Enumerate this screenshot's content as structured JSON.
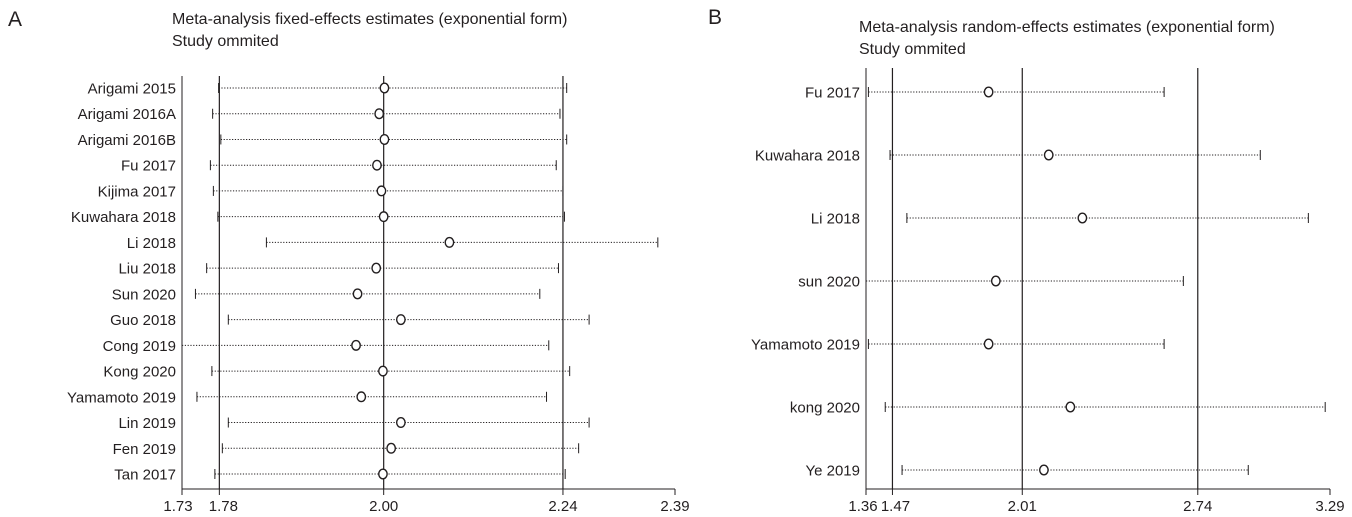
{
  "panels": [
    {
      "letter": "A",
      "title_line1": "Meta-analysis fixed-effects estimates (exponential form)",
      "title_line2": "Study ommited"
    },
    {
      "letter": "B",
      "title_line1": "Meta-analysis random-effects estimates (exponential form)",
      "title_line2": "Study ommited"
    }
  ],
  "chart_data": [
    {
      "type": "forest",
      "title": "Meta-analysis fixed-effects estimates (exponential form)",
      "subtitle": "Study ommited",
      "xlim": [
        1.73,
        2.39
      ],
      "x_ticks": [
        1.73,
        1.78,
        2.0,
        2.24,
        2.39
      ],
      "x_tick_labels": [
        "1.73",
        "1.78",
        "2.00",
        "2.24",
        "2.39"
      ],
      "reference_lines": [
        1.78,
        2.0,
        2.24
      ],
      "studies": [
        {
          "name": "Arigami 2015",
          "estimate": 2.001,
          "lower": 1.779,
          "upper": 2.245
        },
        {
          "name": "Arigami 2016A",
          "estimate": 1.994,
          "lower": 1.771,
          "upper": 2.236
        },
        {
          "name": "Arigami 2016B",
          "estimate": 2.001,
          "lower": 1.782,
          "upper": 2.245
        },
        {
          "name": "Fu 2017",
          "estimate": 1.991,
          "lower": 1.768,
          "upper": 2.231
        },
        {
          "name": "Kijima 2017",
          "estimate": 1.997,
          "lower": 1.772,
          "upper": 2.24
        },
        {
          "name": "Kuwahara 2018",
          "estimate": 2.0,
          "lower": 1.778,
          "upper": 2.242
        },
        {
          "name": "Li 2018",
          "estimate": 2.088,
          "lower": 1.843,
          "upper": 2.367
        },
        {
          "name": "Liu 2018",
          "estimate": 1.99,
          "lower": 1.763,
          "upper": 2.234
        },
        {
          "name": "Sun 2020",
          "estimate": 1.965,
          "lower": 1.748,
          "upper": 2.209
        },
        {
          "name": "Guo 2018",
          "estimate": 2.023,
          "lower": 1.792,
          "upper": 2.275
        },
        {
          "name": "Cong 2019",
          "estimate": 1.963,
          "lower": 1.73,
          "upper": 2.221
        },
        {
          "name": "Kong 2020",
          "estimate": 1.999,
          "lower": 1.77,
          "upper": 2.249
        },
        {
          "name": "Yamamoto 2019",
          "estimate": 1.97,
          "lower": 1.75,
          "upper": 2.218
        },
        {
          "name": "Lin 2019",
          "estimate": 2.023,
          "lower": 1.792,
          "upper": 2.275
        },
        {
          "name": "Fen 2019",
          "estimate": 2.01,
          "lower": 1.784,
          "upper": 2.261
        },
        {
          "name": "Tan 2017",
          "estimate": 1.999,
          "lower": 1.774,
          "upper": 2.243
        }
      ]
    },
    {
      "type": "forest",
      "title": "Meta-analysis random-effects estimates (exponential form)",
      "subtitle": "Study ommited",
      "xlim": [
        1.36,
        3.29
      ],
      "x_ticks": [
        1.36,
        1.47,
        2.01,
        2.74,
        3.29
      ],
      "x_tick_labels": [
        "1.36",
        "1.47",
        "2.01",
        "2.74",
        "3.29"
      ],
      "reference_lines": [
        1.47,
        2.01,
        2.74
      ],
      "studies": [
        {
          "name": "Fu 2017",
          "estimate": 1.87,
          "lower": 1.37,
          "upper": 2.6
        },
        {
          "name": "Kuwahara 2018",
          "estimate": 2.12,
          "lower": 1.46,
          "upper": 3.0
        },
        {
          "name": "Li 2018",
          "estimate": 2.26,
          "lower": 1.53,
          "upper": 3.2
        },
        {
          "name": "sun 2020",
          "estimate": 1.9,
          "lower": 1.36,
          "upper": 2.68
        },
        {
          "name": "Yamamoto 2019",
          "estimate": 1.87,
          "lower": 1.37,
          "upper": 2.6
        },
        {
          "name": "kong 2020",
          "estimate": 2.21,
          "lower": 1.44,
          "upper": 3.27
        },
        {
          "name": "Ye 2019",
          "estimate": 2.1,
          "lower": 1.51,
          "upper": 2.95
        }
      ]
    }
  ]
}
